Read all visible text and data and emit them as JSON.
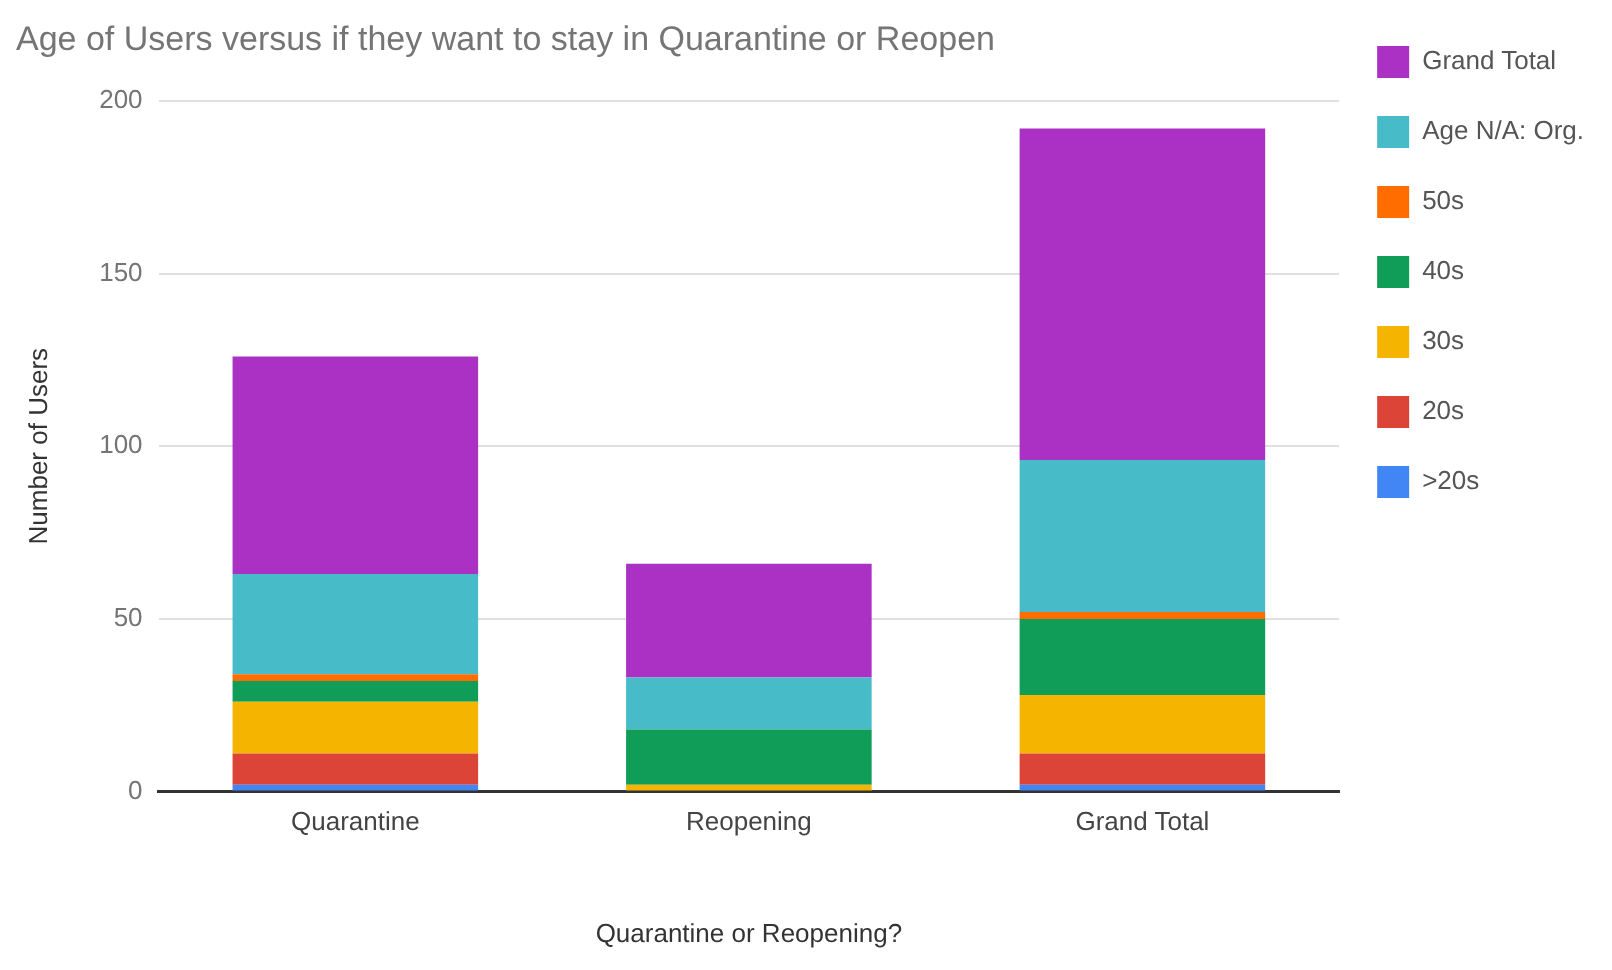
{
  "chart_data": {
    "type": "bar",
    "title": "Age of Users versus if they want to stay in Quarantine or Reopen",
    "xlabel": "Quarantine or Reopening?",
    "ylabel": "Number of Users",
    "categories": [
      "Quarantine",
      "Reopening",
      "Grand Total"
    ],
    "stacked": true,
    "ylim": [
      0,
      200
    ],
    "yticks": [
      0,
      50,
      100,
      150,
      200
    ],
    "grid": "y",
    "legend": "right",
    "series": [
      {
        "name": ">20s",
        "color": "#4285f4",
        "values": [
          2,
          0,
          2
        ]
      },
      {
        "name": "20s",
        "color": "#db4437",
        "values": [
          9,
          0,
          9
        ]
      },
      {
        "name": "30s",
        "color": "#f4b400",
        "values": [
          15,
          2,
          17
        ]
      },
      {
        "name": "40s",
        "color": "#0f9d58",
        "values": [
          6,
          16,
          22
        ]
      },
      {
        "name": "50s",
        "color": "#ff6d01",
        "values": [
          2,
          0,
          2
        ]
      },
      {
        "name": "Age N/A: Org.",
        "color": "#47bbc7",
        "values": [
          29,
          15,
          44
        ]
      },
      {
        "name": "Grand Total",
        "color": "#ab30c4",
        "values": [
          63,
          33,
          96
        ]
      }
    ]
  }
}
